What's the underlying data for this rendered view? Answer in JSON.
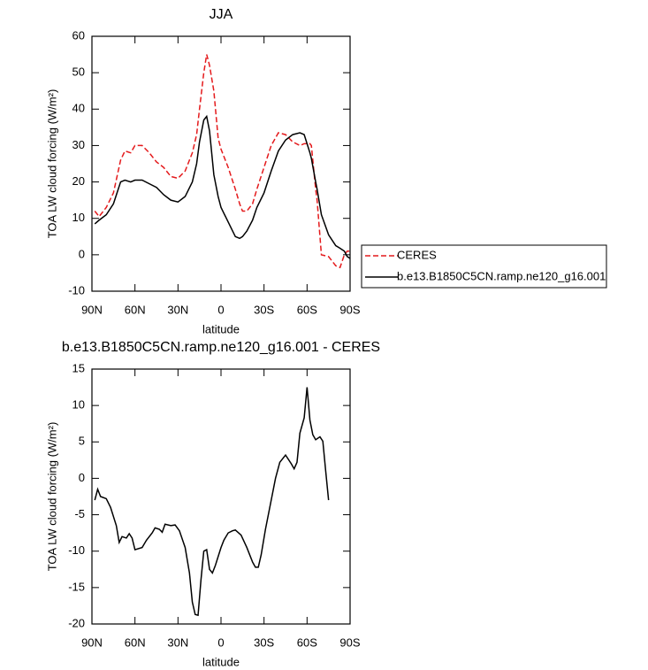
{
  "chart_data": [
    {
      "type": "line",
      "title": "JJA",
      "xlabel": "latitude",
      "ylabel": "TOA LW cloud forcing (W/m²)",
      "x": [
        88,
        85,
        80,
        75,
        70,
        67,
        63,
        60,
        55,
        50,
        45,
        40,
        35,
        30,
        25,
        20,
        17,
        15,
        12,
        10,
        8,
        5,
        2,
        0,
        -5,
        -10,
        -13,
        -15,
        -18,
        -22,
        -25,
        -30,
        -35,
        -40,
        -45,
        -50,
        -55,
        -58,
        -62,
        -63,
        -66,
        -67,
        -70,
        -75,
        -80,
        -83,
        -86,
        -88,
        -90
      ],
      "series": [
        {
          "name": "CERES",
          "color": "#e41a1c",
          "dashed": true,
          "values": [
            12,
            10.5,
            13,
            17,
            26,
            28.5,
            28,
            30,
            30,
            28,
            25.5,
            24,
            21.5,
            21,
            23,
            28,
            33,
            40,
            50,
            55,
            52,
            45,
            32,
            29,
            24,
            18,
            14,
            12,
            12,
            14,
            18,
            24,
            30,
            33.5,
            33,
            31,
            30,
            30.5,
            30.5,
            30,
            18,
            15,
            0,
            -0.5,
            -3,
            -3.5,
            0,
            1,
            1
          ]
        },
        {
          "name": "b.e13.B1850C5CN.ramp.ne120_g16.001",
          "color": "#000000",
          "dashed": false,
          "values": [
            8.5,
            9.5,
            11,
            14,
            20,
            20.5,
            20,
            20.5,
            20.5,
            19.5,
            18.5,
            16.5,
            15,
            14.5,
            16,
            20,
            25,
            31,
            37,
            38,
            34,
            22,
            16,
            13,
            9,
            5,
            4.5,
            5,
            6.5,
            9.5,
            13,
            17,
            23,
            28.5,
            31.5,
            33,
            33.5,
            33,
            28,
            26.5,
            20,
            18,
            11,
            5.5,
            2.5,
            1.8,
            1,
            -0.5,
            -1
          ]
        }
      ],
      "xlim": [
        90,
        -90
      ],
      "xticks": [
        {
          "value": 90,
          "label": "90N"
        },
        {
          "value": 60,
          "label": "60N"
        },
        {
          "value": 30,
          "label": "30N"
        },
        0,
        {
          "value": -30,
          "label": "30S"
        },
        {
          "value": -60,
          "label": "60S"
        },
        {
          "value": -90,
          "label": "90S"
        }
      ],
      "ylim": [
        -10,
        60
      ],
      "yticks": [
        -10,
        0,
        10,
        20,
        30,
        40,
        50,
        60
      ],
      "legend": "right"
    },
    {
      "type": "line",
      "title": "b.e13.B1850C5CN.ramp.ne120_g16.001 - CERES",
      "xlabel": "latitude",
      "ylabel": "TOA LW cloud forcing (W/m²)",
      "x": [
        88,
        86,
        84,
        80,
        77,
        73,
        71,
        69,
        66,
        64,
        62,
        60,
        55,
        52,
        48,
        46,
        43,
        41,
        39,
        35,
        32,
        29,
        25,
        22,
        20,
        18,
        16,
        14,
        12,
        10,
        8,
        6,
        4,
        0,
        -2,
        -5,
        -8,
        -10,
        -14,
        -18,
        -22,
        -24,
        -26,
        -28,
        -31,
        -35,
        -38,
        -41,
        -45,
        -49,
        -51,
        -53,
        -55,
        -58,
        -60,
        -62,
        -64,
        -66,
        -69,
        -71,
        -73,
        -75
      ],
      "series": [
        {
          "color": "#000000",
          "dashed": false,
          "values": [
            -3,
            -1.5,
            -2.5,
            -2.8,
            -4,
            -6.5,
            -8.8,
            -8,
            -8.2,
            -7.6,
            -8.2,
            -9.8,
            -9.5,
            -8.5,
            -7.5,
            -6.8,
            -7,
            -7.4,
            -6.3,
            -6.5,
            -6.4,
            -7.2,
            -9.5,
            -13,
            -17,
            -18.7,
            -18.8,
            -14,
            -10,
            -9.8,
            -12.5,
            -13,
            -12,
            -9.5,
            -8.5,
            -7.5,
            -7.2,
            -7.1,
            -7.8,
            -9.5,
            -11.5,
            -12.2,
            -12.2,
            -10.5,
            -7,
            -3,
            0,
            2.2,
            3.2,
            2,
            1.3,
            2.2,
            6.2,
            8.3,
            12.5,
            8,
            6,
            5.3,
            5.7,
            5.1,
            1,
            -3
          ]
        }
      ],
      "xlim": [
        90,
        -90
      ],
      "xticks": [
        {
          "value": 90,
          "label": "90N"
        },
        {
          "value": 60,
          "label": "60N"
        },
        {
          "value": 30,
          "label": "30N"
        },
        0,
        {
          "value": -30,
          "label": "30S"
        },
        {
          "value": -60,
          "label": "60S"
        },
        {
          "value": -90,
          "label": "90S"
        }
      ],
      "ylim": [
        -20,
        15
      ],
      "yticks": [
        -20,
        -15,
        -10,
        -5,
        0,
        5,
        10,
        15
      ]
    }
  ]
}
